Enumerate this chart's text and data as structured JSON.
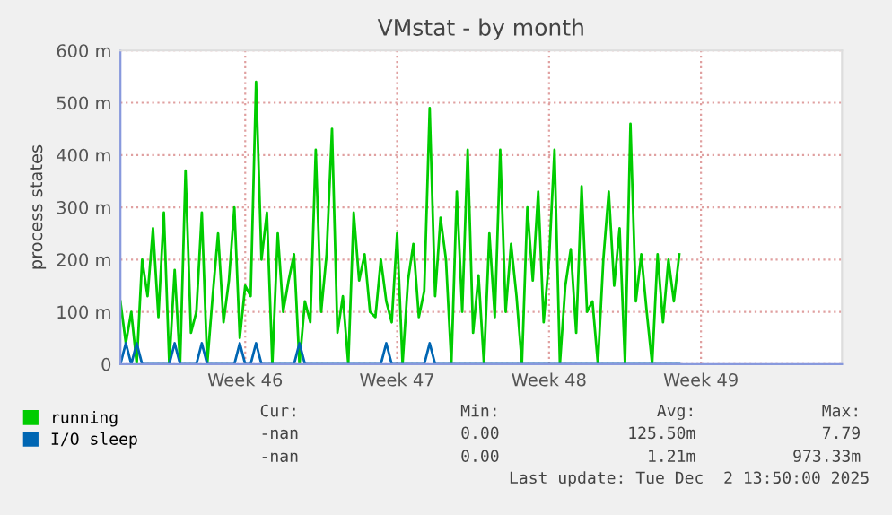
{
  "chart_data": {
    "type": "line",
    "title": "VMstat - by month",
    "ylabel": "process states",
    "categories": [
      null,
      null,
      null,
      null,
      null,
      null,
      null,
      null,
      null,
      null,
      null,
      null,
      null,
      null,
      null,
      null,
      null,
      null,
      null,
      null,
      null,
      null,
      null,
      "Week 46",
      null,
      null,
      null,
      null,
      null,
      null,
      null,
      null,
      null,
      null,
      null,
      null,
      null,
      null,
      null,
      null,
      null,
      null,
      null,
      null,
      null,
      null,
      null,
      null,
      null,
      null,
      null,
      "Week 47",
      null,
      null,
      null,
      null,
      null,
      null,
      null,
      null,
      null,
      null,
      null,
      null,
      null,
      null,
      null,
      null,
      null,
      null,
      null,
      null,
      null,
      null,
      null,
      null,
      null,
      null,
      null,
      "Week 48",
      null,
      null,
      null,
      null,
      null,
      null,
      null,
      null,
      null,
      null,
      null,
      null,
      null,
      null,
      null,
      null,
      null,
      null,
      null,
      null,
      null,
      null,
      null,
      null,
      null,
      null,
      null,
      "Week 49",
      null,
      null,
      null,
      null,
      null,
      null,
      null,
      null,
      null,
      null,
      null,
      null,
      null,
      null,
      null,
      null,
      null,
      null,
      null,
      null,
      null,
      null,
      null,
      null,
      null,
      null
    ],
    "series": [
      {
        "name": "running",
        "color": "#00cc00",
        "values": [
          120,
          40,
          100,
          0,
          200,
          130,
          260,
          90,
          290,
          0,
          180,
          0,
          370,
          60,
          100,
          290,
          0,
          130,
          250,
          80,
          160,
          300,
          50,
          150,
          130,
          540,
          200,
          290,
          0,
          250,
          100,
          160,
          210,
          0,
          120,
          80,
          410,
          100,
          210,
          450,
          60,
          130,
          0,
          290,
          160,
          210,
          100,
          90,
          200,
          120,
          80,
          250,
          0,
          160,
          230,
          90,
          140,
          490,
          130,
          280,
          200,
          0,
          330,
          100,
          410,
          60,
          170,
          0,
          250,
          90,
          410,
          100,
          230,
          130,
          0,
          300,
          160,
          330,
          80,
          200,
          410,
          0,
          150,
          220,
          60,
          340,
          100,
          120,
          0,
          200,
          330,
          150,
          260,
          0,
          460,
          120,
          210,
          100,
          0,
          210,
          80,
          200,
          120,
          210,
          null,
          null,
          null,
          null,
          null,
          null,
          null,
          null,
          null,
          null,
          null,
          null,
          null,
          null,
          null,
          null,
          null,
          null,
          null,
          null,
          null,
          null,
          null,
          null,
          null,
          null,
          null,
          null,
          null,
          null
        ]
      },
      {
        "name": "I/O sleep",
        "color": "#0066b3",
        "values": [
          0,
          40,
          0,
          40,
          0,
          0,
          0,
          0,
          0,
          0,
          40,
          0,
          0,
          0,
          0,
          40,
          0,
          0,
          0,
          0,
          0,
          0,
          40,
          0,
          0,
          40,
          0,
          0,
          0,
          0,
          0,
          0,
          0,
          40,
          0,
          0,
          0,
          0,
          0,
          0,
          0,
          0,
          0,
          0,
          0,
          0,
          0,
          0,
          0,
          40,
          0,
          0,
          0,
          0,
          0,
          0,
          0,
          40,
          0,
          0,
          0,
          0,
          0,
          0,
          0,
          0,
          0,
          0,
          0,
          0,
          0,
          0,
          0,
          0,
          0,
          0,
          0,
          0,
          0,
          0,
          0,
          0,
          0,
          0,
          0,
          0,
          0,
          0,
          0,
          0,
          0,
          0,
          0,
          0,
          0,
          0,
          0,
          0,
          0,
          0,
          0,
          0,
          0,
          0,
          null,
          null,
          null,
          null,
          null,
          null,
          null,
          null,
          null,
          null,
          null,
          null,
          null,
          null,
          null,
          null,
          null,
          null,
          null,
          null,
          null,
          null,
          null,
          null,
          null,
          null,
          null,
          null,
          null,
          null
        ]
      }
    ],
    "ylim": [
      0,
      600
    ],
    "yticks": [
      0,
      {
        "value": 100,
        "label": "100 m"
      },
      {
        "value": 200,
        "label": "200 m"
      },
      {
        "value": 300,
        "label": "300 m"
      },
      {
        "value": 400,
        "label": "400 m"
      },
      {
        "value": 500,
        "label": "500 m"
      },
      {
        "value": 600,
        "label": "600 m"
      }
    ],
    "grid": true,
    "legend": "bottom",
    "marker": "none",
    "line_style": "solid",
    "annotations": [
      "Cur:",
      "Min:",
      "Avg:",
      "Max:",
      "-nan",
      "0.00",
      "125.50m",
      "7.79",
      "-nan",
      "0.00",
      "1.21m",
      "973.33m",
      "Last update: Tue Dec  2 13:50:00 2025"
    ]
  }
}
